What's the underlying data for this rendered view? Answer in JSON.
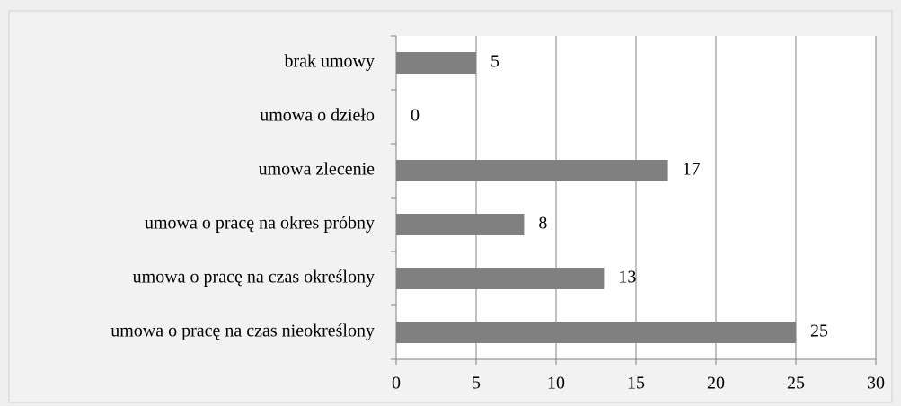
{
  "chart_data": {
    "type": "barh",
    "categories": [
      "brak umowy",
      "umowa o dzieło",
      "umowa zlecenie",
      "umowa o pracę na okres próbny",
      "umowa o pracę na czas określony",
      "umowa o pracę na czas nieokreślony"
    ],
    "values": [
      5,
      0,
      17,
      8,
      13,
      25
    ],
    "color": "#808080",
    "xlim": [
      0,
      30
    ],
    "xticks": [
      0,
      5,
      10,
      15,
      20,
      25,
      30
    ],
    "grid": true
  }
}
